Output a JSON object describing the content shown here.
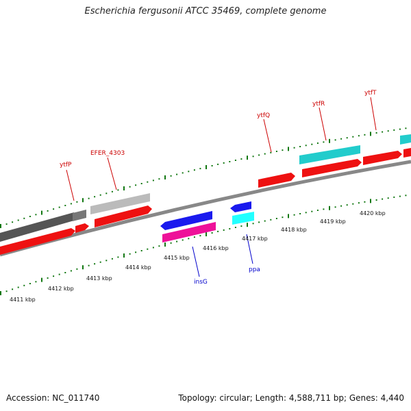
{
  "title": "Escherichia fergusonii ATCC 35469, complete genome",
  "footer": {
    "accession": "Accession: NC_011740",
    "summary": "Topology: circular; Length: 4,588,711 bp; Genes: 4,440"
  },
  "colors": {
    "forward_cds": "#ee1111",
    "reverse_cds": "#555555",
    "grey_feature": "#bbbbbb",
    "blue_feature": "#1a1aee",
    "pink_feature": "#ee1199",
    "cyan_feature": "#22cccc",
    "tick": "#117711",
    "label_red": "#cc0000",
    "label_blue": "#0000cc"
  },
  "scale_labels": [
    "4411 kbp",
    "4412 kbp",
    "4413 kbp",
    "4414 kbp",
    "4415 kbp",
    "4416 kbp",
    "4417 kbp",
    "4418 kbp",
    "4419 kbp",
    "4420 kbp"
  ],
  "gene_labels": [
    {
      "name": "ytfP",
      "color": "red"
    },
    {
      "name": "EFER_4303",
      "color": "red"
    },
    {
      "name": "ytfQ",
      "color": "red"
    },
    {
      "name": "ytfR",
      "color": "red"
    },
    {
      "name": "ytfT",
      "color": "red"
    },
    {
      "name": "insG",
      "color": "blue"
    },
    {
      "name": "ppa",
      "color": "blue"
    }
  ]
}
